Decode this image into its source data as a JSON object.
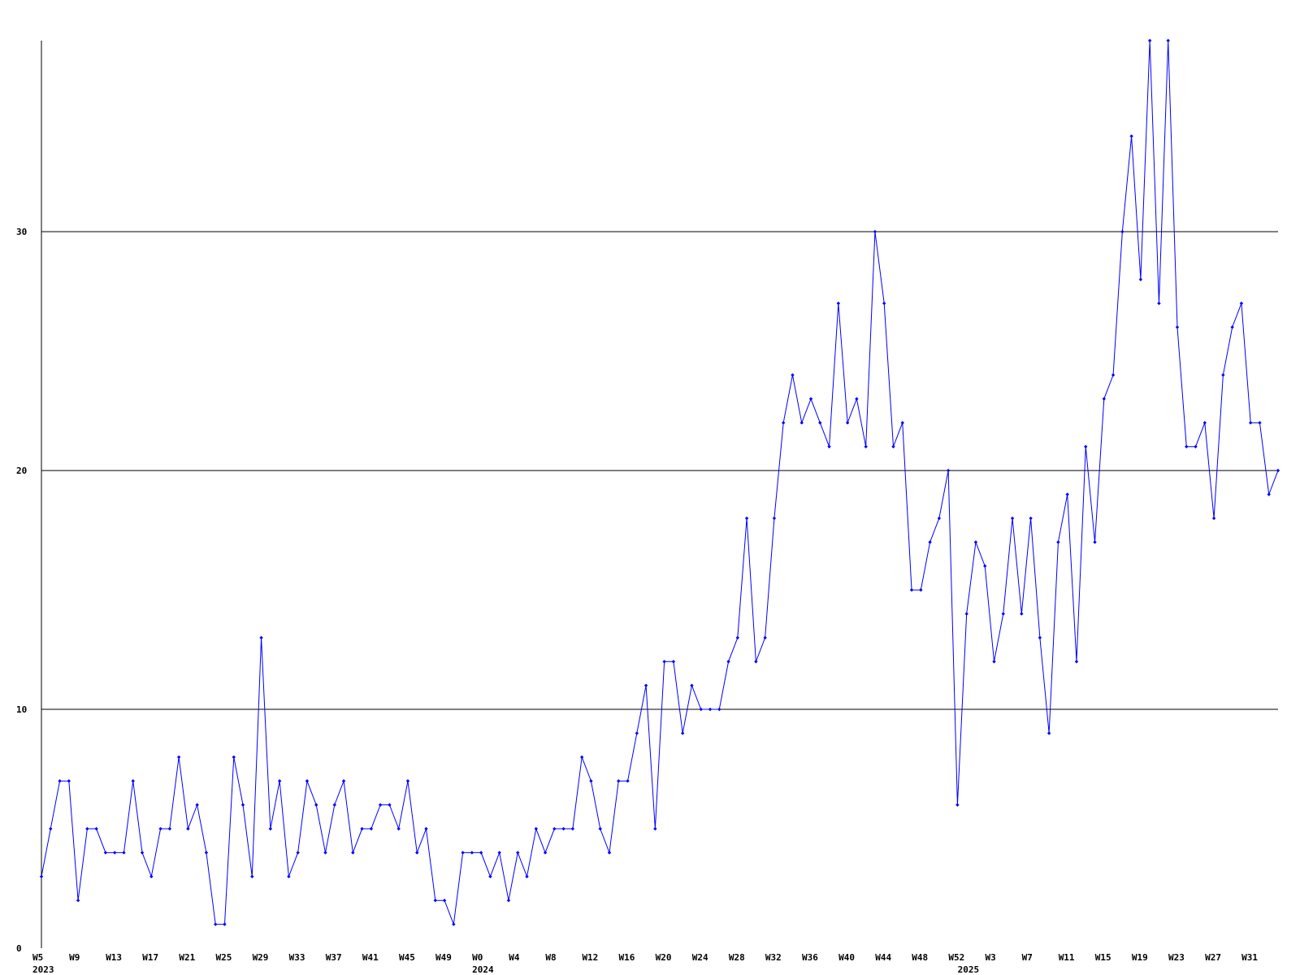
{
  "chart_data": {
    "type": "line",
    "categories": [
      "W5",
      null,
      null,
      null,
      "W9",
      null,
      null,
      null,
      "W13",
      null,
      null,
      null,
      "W17",
      null,
      null,
      null,
      "W21",
      null,
      null,
      null,
      "W25",
      null,
      null,
      null,
      "W29",
      null,
      null,
      null,
      "W33",
      null,
      null,
      null,
      "W37",
      null,
      null,
      null,
      "W41",
      null,
      null,
      null,
      "W45",
      null,
      null,
      null,
      "W49",
      null,
      null,
      null,
      "W0",
      null,
      null,
      null,
      "W4",
      null,
      null,
      null,
      "W8",
      null,
      null,
      null,
      "W12",
      null,
      null,
      null,
      "W16",
      null,
      null,
      null,
      "W20",
      null,
      null,
      null,
      "W24",
      null,
      null,
      null,
      "W28",
      null,
      null,
      null,
      "W32",
      null,
      null,
      null,
      "W36",
      null,
      null,
      null,
      "W40",
      null,
      null,
      null,
      "W44",
      null,
      null,
      null,
      "W48",
      null,
      null,
      null,
      "W52",
      null,
      null,
      null,
      "W3",
      null,
      null,
      null,
      "W7",
      null,
      null,
      null,
      "W11",
      null,
      null,
      null,
      "W15",
      null,
      null,
      null,
      "W19",
      null,
      null,
      null,
      "W23",
      null,
      null,
      null,
      "W27",
      null,
      null,
      null,
      "W31",
      null,
      null,
      null
    ],
    "category_years": [
      "2023",
      null,
      null,
      null,
      null,
      null,
      null,
      null,
      null,
      null,
      null,
      null,
      null,
      null,
      null,
      null,
      null,
      null,
      null,
      null,
      null,
      null,
      null,
      null,
      null,
      null,
      null,
      null,
      null,
      null,
      null,
      null,
      null,
      null,
      null,
      null,
      null,
      null,
      null,
      null,
      null,
      null,
      null,
      null,
      null,
      null,
      null,
      null,
      "2024",
      null,
      null,
      null,
      null,
      null,
      null,
      null,
      null,
      null,
      null,
      null,
      null,
      null,
      null,
      null,
      null,
      null,
      null,
      null,
      null,
      null,
      null,
      null,
      null,
      null,
      null,
      null,
      null,
      null,
      null,
      null,
      null,
      null,
      null,
      null,
      null,
      null,
      null,
      null,
      null,
      null,
      null,
      null,
      null,
      null,
      null,
      null,
      null,
      null,
      null,
      null,
      null,
      "2025",
      null,
      null,
      null,
      null,
      null,
      null,
      null,
      null,
      null,
      null,
      null,
      null,
      null,
      null,
      null,
      null,
      null,
      null,
      null,
      null,
      null,
      null,
      null,
      null,
      null,
      null,
      null,
      null,
      null,
      null,
      null,
      null,
      null,
      null
    ],
    "series": [
      {
        "color": "#0000ff",
        "values": [
          3,
          5,
          7,
          7,
          2,
          5,
          5,
          4,
          4,
          4,
          7,
          4,
          3,
          5,
          5,
          8,
          5,
          6,
          4,
          1,
          1,
          8,
          6,
          3,
          13,
          5,
          7,
          3,
          4,
          7,
          6,
          4,
          6,
          7,
          4,
          5,
          5,
          6,
          6,
          5,
          7,
          4,
          5,
          2,
          2,
          1,
          4,
          4,
          4,
          3,
          4,
          2,
          4,
          3,
          5,
          4,
          5,
          5,
          5,
          8,
          7,
          5,
          4,
          7,
          7,
          9,
          11,
          5,
          12,
          12,
          9,
          11,
          10,
          10,
          10,
          12,
          13,
          18,
          12,
          13,
          18,
          22,
          24,
          22,
          23,
          22,
          21,
          27,
          22,
          23,
          21,
          30,
          27,
          21,
          22,
          15,
          15,
          17,
          18,
          20,
          6,
          14,
          17,
          16,
          12,
          14,
          18,
          14,
          18,
          13,
          9,
          17,
          19,
          12,
          21,
          17,
          23,
          24,
          30,
          34,
          28,
          38,
          27,
          38,
          26,
          21,
          21,
          22,
          18,
          24,
          26,
          27,
          22,
          22,
          19,
          20
        ]
      }
    ],
    "ylim": [
      0,
      38
    ],
    "yticks": [
      0,
      10,
      20,
      30
    ],
    "grid": true
  }
}
